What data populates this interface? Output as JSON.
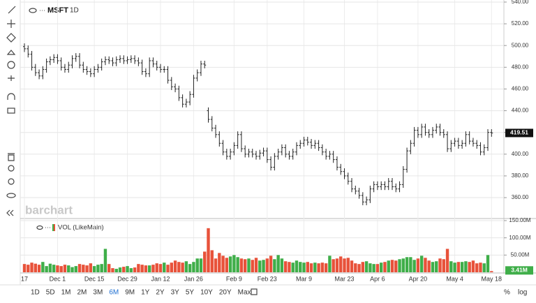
{
  "chart_data": [
    {
      "type": "ohlc",
      "symbol": "MSFT",
      "interval": "1D",
      "color": "#222222",
      "grid": true,
      "ylim": [
        341.4,
        541.9
      ],
      "yticks": [
        {
          "value": 540,
          "label": "540.00"
        },
        {
          "value": 520,
          "label": "520.00"
        },
        {
          "value": 500,
          "label": "500.00"
        },
        {
          "value": 480,
          "label": "480.00"
        },
        {
          "value": 460,
          "label": "460.00"
        },
        {
          "value": 440,
          "label": "440.00"
        },
        {
          "value": 420,
          "label": "420.00"
        },
        {
          "value": 400,
          "label": "400.00"
        },
        {
          "value": 380,
          "label": "380.00"
        },
        {
          "value": 360,
          "label": "360.00"
        }
      ],
      "categories": [
        "17",
        null,
        null,
        null,
        null,
        null,
        null,
        null,
        null,
        "Dec 1",
        null,
        null,
        null,
        null,
        null,
        null,
        null,
        null,
        null,
        "Dec 15",
        null,
        null,
        null,
        null,
        null,
        null,
        null,
        null,
        "Dec 29",
        null,
        null,
        null,
        null,
        null,
        null,
        null,
        null,
        "Jan 12",
        null,
        null,
        null,
        null,
        null,
        null,
        null,
        null,
        "Jan 26",
        null,
        null,
        null,
        null,
        null,
        null,
        null,
        null,
        null,
        null,
        "Feb 9",
        null,
        null,
        null,
        null,
        null,
        null,
        null,
        null,
        "Feb 23",
        null,
        null,
        null,
        null,
        null,
        null,
        null,
        null,
        null,
        "Mar 9",
        null,
        null,
        null,
        null,
        null,
        null,
        null,
        null,
        null,
        null,
        "Mar 23",
        null,
        null,
        null,
        null,
        null,
        null,
        null,
        null,
        "Apr 6",
        null,
        null,
        null,
        null,
        null,
        null,
        null,
        null,
        null,
        null,
        "Apr 20",
        null,
        null,
        null,
        null,
        null,
        null,
        null,
        null,
        null,
        "May 4",
        null,
        null,
        null,
        null,
        null,
        null,
        null,
        null,
        null,
        "May 18"
      ],
      "opens": [
        499,
        497,
        492,
        480,
        475,
        472,
        478,
        485,
        487,
        489,
        486,
        480,
        478,
        482,
        488,
        490,
        482,
        478,
        476,
        474,
        478,
        480,
        485,
        487,
        486,
        484,
        487,
        488,
        486,
        487,
        488,
        486,
        484,
        476,
        474,
        486,
        483,
        480,
        478,
        478,
        468,
        462,
        460,
        452,
        446,
        448,
        455,
        470,
        475,
        483,
        440,
        432,
        424,
        418,
        410,
        402,
        398,
        402,
        408,
        418,
        405,
        400,
        402,
        400,
        398,
        401,
        403,
        395,
        388,
        398,
        402,
        406,
        400,
        398,
        402,
        408,
        410,
        413,
        411,
        408,
        410,
        406,
        402,
        398,
        400,
        395,
        388,
        384,
        380,
        375,
        368,
        366,
        362,
        356,
        358,
        368,
        372,
        370,
        372,
        370,
        375,
        370,
        368,
        372,
        386,
        403,
        410,
        422,
        418,
        425,
        420,
        418,
        422,
        425,
        420,
        418,
        405,
        410,
        412,
        408,
        410,
        418,
        412,
        410,
        408,
        402,
        406,
        420
      ],
      "highs": [
        502,
        500,
        495,
        483,
        478,
        481,
        488,
        490,
        492,
        492,
        489,
        483,
        485,
        491,
        493,
        493,
        485,
        481,
        479,
        481,
        483,
        488,
        490,
        490,
        489,
        490,
        491,
        491,
        490,
        491,
        491,
        489,
        487,
        479,
        489,
        489,
        486,
        483,
        481,
        481,
        471,
        465,
        463,
        455,
        451,
        458,
        473,
        478,
        486,
        486,
        443,
        435,
        427,
        421,
        413,
        405,
        405,
        411,
        421,
        421,
        408,
        405,
        405,
        403,
        404,
        406,
        406,
        398,
        401,
        405,
        409,
        409,
        403,
        405,
        411,
        413,
        416,
        416,
        414,
        413,
        413,
        409,
        405,
        403,
        403,
        398,
        391,
        387,
        383,
        378,
        371,
        369,
        365,
        361,
        371,
        375,
        375,
        375,
        375,
        378,
        378,
        373,
        375,
        389,
        406,
        413,
        425,
        425,
        428,
        428,
        423,
        425,
        428,
        428,
        423,
        421,
        413,
        415,
        415,
        413,
        421,
        421,
        415,
        413,
        411,
        409,
        423,
        423
      ],
      "lows": [
        494,
        489,
        477,
        472,
        469,
        469,
        475,
        482,
        484,
        483,
        477,
        475,
        475,
        479,
        485,
        479,
        475,
        473,
        471,
        471,
        475,
        477,
        482,
        483,
        481,
        481,
        484,
        483,
        483,
        484,
        483,
        481,
        473,
        471,
        471,
        480,
        477,
        475,
        475,
        465,
        459,
        457,
        449,
        443,
        443,
        445,
        452,
        467,
        472,
        479,
        429,
        421,
        415,
        407,
        399,
        395,
        395,
        399,
        405,
        402,
        397,
        397,
        397,
        395,
        395,
        398,
        392,
        385,
        385,
        395,
        399,
        397,
        395,
        395,
        399,
        405,
        407,
        408,
        405,
        405,
        403,
        399,
        395,
        395,
        392,
        385,
        381,
        377,
        372,
        365,
        363,
        359,
        353,
        353,
        355,
        365,
        367,
        367,
        367,
        367,
        367,
        365,
        365,
        369,
        383,
        400,
        407,
        415,
        415,
        417,
        415,
        415,
        419,
        417,
        415,
        402,
        402,
        407,
        405,
        405,
        407,
        409,
        407,
        405,
        399,
        399,
        403,
        416
      ],
      "closes": [
        497,
        492,
        480,
        475,
        472,
        478,
        485,
        487,
        489,
        486,
        480,
        478,
        482,
        488,
        490,
        482,
        478,
        476,
        474,
        478,
        480,
        485,
        487,
        486,
        484,
        487,
        488,
        486,
        487,
        488,
        486,
        484,
        476,
        474,
        486,
        483,
        480,
        478,
        478,
        468,
        462,
        460,
        452,
        446,
        448,
        455,
        470,
        475,
        483,
        482,
        432,
        424,
        418,
        410,
        402,
        398,
        402,
        408,
        418,
        405,
        400,
        402,
        400,
        398,
        401,
        403,
        395,
        388,
        398,
        402,
        406,
        400,
        398,
        402,
        408,
        410,
        413,
        411,
        408,
        410,
        406,
        402,
        398,
        400,
        395,
        388,
        384,
        380,
        375,
        368,
        366,
        362,
        356,
        358,
        368,
        372,
        370,
        372,
        370,
        375,
        370,
        368,
        372,
        386,
        403,
        410,
        422,
        418,
        425,
        420,
        418,
        422,
        425,
        420,
        418,
        405,
        410,
        412,
        408,
        410,
        418,
        412,
        410,
        408,
        402,
        406,
        420,
        419.51
      ]
    },
    {
      "type": "bar",
      "name": "VOL (LikeMain)",
      "up_color": "#3fae49",
      "down_color": "#e8523a",
      "ylim": [
        0,
        154000000
      ],
      "yticks": [
        {
          "value": 150000000,
          "label": "150.00M"
        },
        {
          "value": 100000000,
          "label": "100.00M"
        },
        {
          "value": 50000000,
          "label": "50.00M"
        }
      ],
      "last_label": "3.41M",
      "values": [
        24000000,
        22000000,
        28000000,
        25000000,
        22000000,
        30000000,
        18000000,
        25000000,
        22000000,
        20000000,
        18000000,
        22000000,
        20000000,
        15000000,
        18000000,
        24000000,
        22000000,
        20000000,
        26000000,
        18000000,
        22000000,
        24000000,
        68000000,
        24000000,
        12000000,
        10000000,
        14000000,
        16000000,
        18000000,
        12000000,
        14000000,
        24000000,
        22000000,
        20000000,
        20000000,
        22000000,
        26000000,
        24000000,
        28000000,
        22000000,
        28000000,
        34000000,
        30000000,
        28000000,
        32000000,
        24000000,
        30000000,
        40000000,
        40000000,
        60000000,
        128000000,
        64000000,
        40000000,
        56000000,
        48000000,
        42000000,
        46000000,
        50000000,
        44000000,
        40000000,
        38000000,
        40000000,
        36000000,
        42000000,
        34000000,
        36000000,
        40000000,
        48000000,
        38000000,
        50000000,
        40000000,
        32000000,
        30000000,
        28000000,
        34000000,
        30000000,
        28000000,
        30000000,
        26000000,
        28000000,
        26000000,
        28000000,
        26000000,
        48000000,
        38000000,
        40000000,
        46000000,
        40000000,
        42000000,
        34000000,
        26000000,
        24000000,
        30000000,
        32000000,
        26000000,
        24000000,
        24000000,
        28000000,
        30000000,
        34000000,
        36000000,
        34000000,
        38000000,
        40000000,
        44000000,
        44000000,
        36000000,
        40000000,
        48000000,
        42000000,
        34000000,
        30000000,
        32000000,
        40000000,
        38000000,
        68000000,
        32000000,
        28000000,
        30000000,
        30000000,
        32000000,
        30000000,
        34000000,
        26000000,
        28000000,
        26000000,
        50000000,
        3410000
      ]
    }
  ],
  "ui": {
    "watermark": "barchart",
    "periods": [
      "1D",
      "5D",
      "1M",
      "2M",
      "3M",
      "6M",
      "9M",
      "1Y",
      "2Y",
      "3Y",
      "5Y",
      "10Y",
      "20Y",
      "Max"
    ],
    "active_period_index": 5,
    "percent": "%",
    "log": "log"
  }
}
